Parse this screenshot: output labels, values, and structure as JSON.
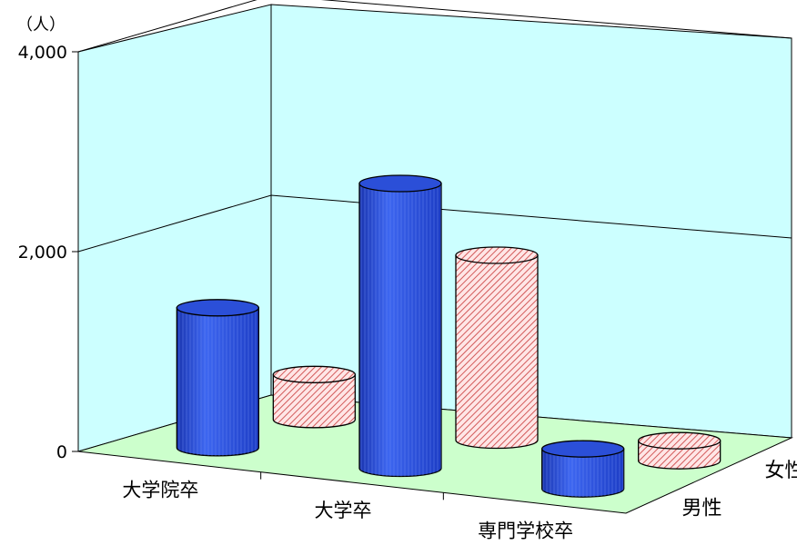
{
  "chart_data": {
    "type": "bar",
    "subtype": "3d-cylinder",
    "unit": "（人）",
    "categories": [
      "大学院卒",
      "大学卒",
      "専門学校卒"
    ],
    "series": [
      {
        "name": "男性",
        "values": [
          1400,
          2850,
          400
        ],
        "color": "#2f56e0"
      },
      {
        "name": "女性",
        "values": [
          450,
          1850,
          200
        ],
        "color": "#f4b8b8"
      }
    ],
    "ylim": [
      0,
      4000
    ],
    "yticks": [
      "0",
      "2,000",
      "4,000"
    ],
    "ytick_values": [
      0,
      2000,
      4000
    ],
    "grid": true,
    "wall_color": "#ccffff",
    "floor_color": "#ccffcc"
  }
}
